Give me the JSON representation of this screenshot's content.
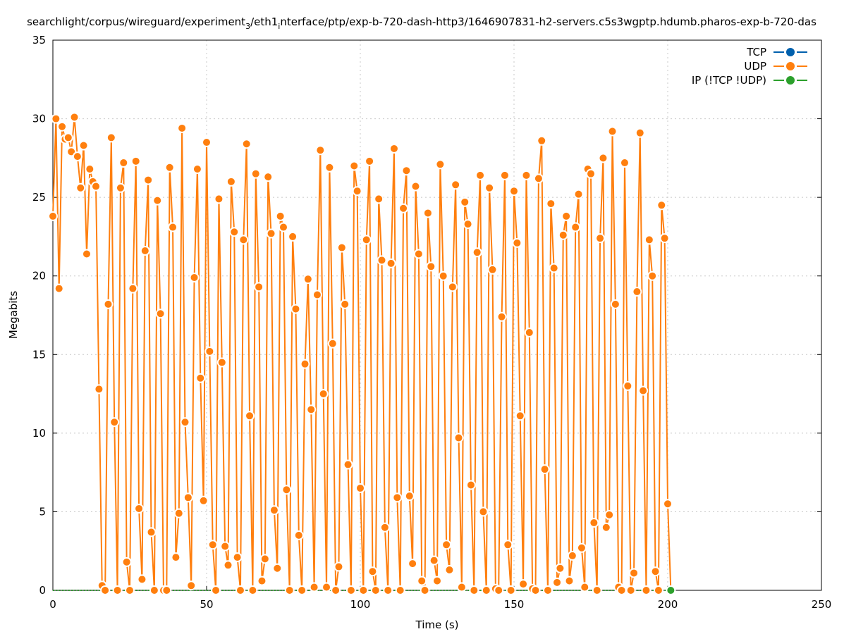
{
  "chart_data": {
    "type": "line",
    "title_main": "searchlight/corpus/wireguard/experiment",
    "title_sub1": "3",
    "title_mid": "/eth1",
    "title_sub2": "i",
    "title_rest": "nterface/ptp/exp-b-720-dash-http3/1646907831-h2-servers.c5s3wgptp.hdumb.pharos-exp-b-720-das",
    "xlabel": "Time (s)",
    "ylabel": "Megabits",
    "xlim": [
      0,
      250
    ],
    "ylim": [
      0,
      35
    ],
    "xticks": [
      "0",
      "50",
      "100",
      "150",
      "200",
      "250"
    ],
    "yticks": [
      "0",
      "5",
      "10",
      "15",
      "20",
      "25",
      "30",
      "35"
    ],
    "grid": true,
    "legend_position": "top-right",
    "series": [
      {
        "name": "TCP",
        "color": "#0060ad",
        "x": [],
        "values": []
      },
      {
        "name": "UDP",
        "color": "#ff7f0e",
        "x_start": 0,
        "x_step": 1,
        "values": [
          23.8,
          30.0,
          19.2,
          29.5,
          28.7,
          28.8,
          27.9,
          30.1,
          27.6,
          25.6,
          28.3,
          21.4,
          26.8,
          26.0,
          25.7,
          12.8,
          0.3,
          0,
          18.2,
          28.8,
          10.7,
          0,
          25.6,
          27.2,
          1.8,
          0,
          19.2,
          27.3,
          5.2,
          0.7,
          21.6,
          26.1,
          3.7,
          0,
          24.8,
          17.6,
          0,
          0,
          26.9,
          23.1,
          2.1,
          4.9,
          29.4,
          10.7,
          5.9,
          0.3,
          19.9,
          26.8,
          13.5,
          5.7,
          28.5,
          15.2,
          2.9,
          0,
          24.9,
          14.5,
          2.8,
          1.6,
          26.0,
          22.8,
          2.1,
          0,
          22.3,
          28.4,
          11.1,
          0,
          26.5,
          19.3,
          0.6,
          2.0,
          26.3,
          22.7,
          5.1,
          1.4,
          23.8,
          23.1,
          6.4,
          0,
          22.5,
          17.9,
          3.5,
          0,
          14.4,
          19.8,
          11.5,
          0.2,
          18.8,
          28.0,
          12.5,
          0.2,
          26.9,
          15.7,
          0,
          1.5,
          21.8,
          18.2,
          8.0,
          0,
          27.0,
          25.4,
          6.5,
          0,
          22.3,
          27.3,
          1.2,
          0,
          24.9,
          21.0,
          4.0,
          0,
          20.8,
          28.1,
          5.9,
          0,
          24.3,
          26.7,
          6.0,
          1.7,
          25.7,
          21.4,
          0.6,
          0,
          24.0,
          20.6,
          1.9,
          0.6,
          27.1,
          20.0,
          2.9,
          1.3,
          19.3,
          25.8,
          9.7,
          0.2,
          24.7,
          23.3,
          6.7,
          0,
          21.5,
          26.4,
          5.0,
          0,
          25.6,
          20.4,
          0.1,
          0,
          17.4,
          26.4,
          2.9,
          0,
          25.4,
          22.1,
          11.1,
          0.4,
          26.4,
          16.4,
          0.1,
          0,
          26.2,
          28.6,
          7.7,
          0,
          24.6,
          20.5,
          0.5,
          1.4,
          22.6,
          23.8,
          0.6,
          2.2,
          23.1,
          25.2,
          2.7,
          0.2,
          26.8,
          26.5,
          4.3,
          0,
          22.4,
          27.5,
          4.0,
          4.8,
          29.2,
          18.2,
          0.2,
          0,
          27.2,
          13.0,
          0,
          1.1,
          19.0,
          29.1,
          12.7,
          0,
          22.3,
          20.0,
          1.2,
          0,
          24.5,
          22.4,
          5.5,
          0
        ]
      },
      {
        "name": "IP (!TCP  !UDP)",
        "color": "#2ca02c",
        "x_range": [
          0,
          201
        ],
        "constant": 0,
        "marker_x": 201
      }
    ]
  }
}
